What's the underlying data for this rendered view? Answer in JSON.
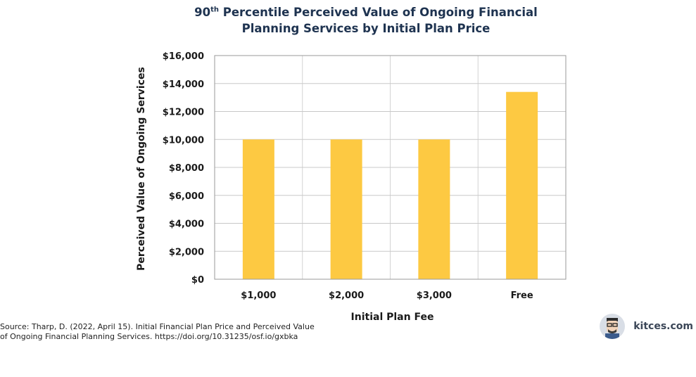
{
  "header": {
    "title_line1_prefix": "90",
    "title_line1_sup": "th",
    "title_line1_rest": " Percentile Perceived Value of Ongoing Financial",
    "title_line2": "Planning Services by Initial Plan Price"
  },
  "footer": {
    "source_line1": "Source: Tharp, D. (2022, April 15). Initial Financial Plan Price and Perceived Value",
    "source_line2": "of Ongoing Financial Planning Services. https://doi.org/10.31235/osf.io/gxbka",
    "brand": "kitces.com"
  },
  "chart_data": {
    "type": "bar",
    "title": "90th Percentile Perceived Value of Ongoing Financial Planning Services by Initial Plan Price",
    "categories": [
      "$1,000",
      "$2,000",
      "$3,000",
      "Free"
    ],
    "values": [
      10000,
      10000,
      10000,
      13400
    ],
    "xlabel": "Initial Plan Fee",
    "ylabel": "Perceived Value of Ongoing Services",
    "ylim": [
      0,
      16000
    ],
    "yticks": [
      "$0",
      "$2,000",
      "$4,000",
      "$6,000",
      "$8,000",
      "$10,000",
      "$12,000",
      "$14,000",
      "$16,000"
    ],
    "bar_color": "#fdc942",
    "grid": true,
    "legend": "none"
  }
}
